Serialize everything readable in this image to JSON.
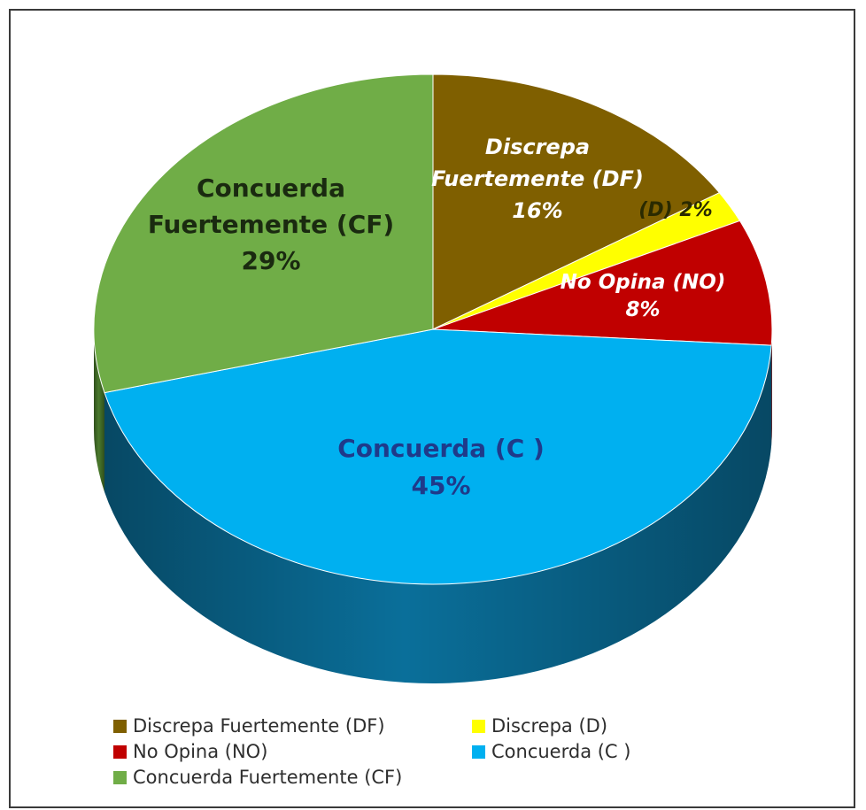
{
  "chart_data": {
    "type": "pie",
    "three_d": true,
    "title": "",
    "slices": [
      {
        "key": "DF",
        "legend": "Discrepa Fuertemente (DF)",
        "label_lines": [
          "Discrepa",
          "Fuertemente (DF)"
        ],
        "pct_label": "16%",
        "value": 16,
        "color": "#7F5F00",
        "side_color": "#5a4300",
        "text_color": "#ffffff",
        "italic": true
      },
      {
        "key": "D",
        "legend": "Discrepa (D)",
        "label_lines": [
          "(D) 2%"
        ],
        "pct_label": "",
        "value": 2,
        "color": "#FFFF00",
        "side_color": "#b3b300",
        "text_color": "#2a2a00",
        "italic": true
      },
      {
        "key": "NO",
        "legend": "No Opina (NO)",
        "label_lines": [
          "No Opina (NO)"
        ],
        "pct_label": "8%",
        "value": 8,
        "color": "#C00000",
        "side_color": "#7a0000",
        "text_color": "#ffffff",
        "italic": true
      },
      {
        "key": "C",
        "legend": "Concuerda (C )",
        "label_lines": [
          "Concuerda (C )"
        ],
        "pct_label": "45%",
        "value": 45,
        "color": "#00B0F0",
        "side_color": "#0a6f9a",
        "text_color": "#1f3a8a",
        "italic": false
      },
      {
        "key": "CF",
        "legend": "Concuerda Fuertemente (CF)",
        "label_lines": [
          "Concuerda",
          "Fuertemente (CF)"
        ],
        "pct_label": "29%",
        "value": 29,
        "color": "#70AD47",
        "side_color": "#4a7a2c",
        "text_color": "#1a2a10",
        "italic": false
      }
    ],
    "legend_placement": "bottom"
  }
}
